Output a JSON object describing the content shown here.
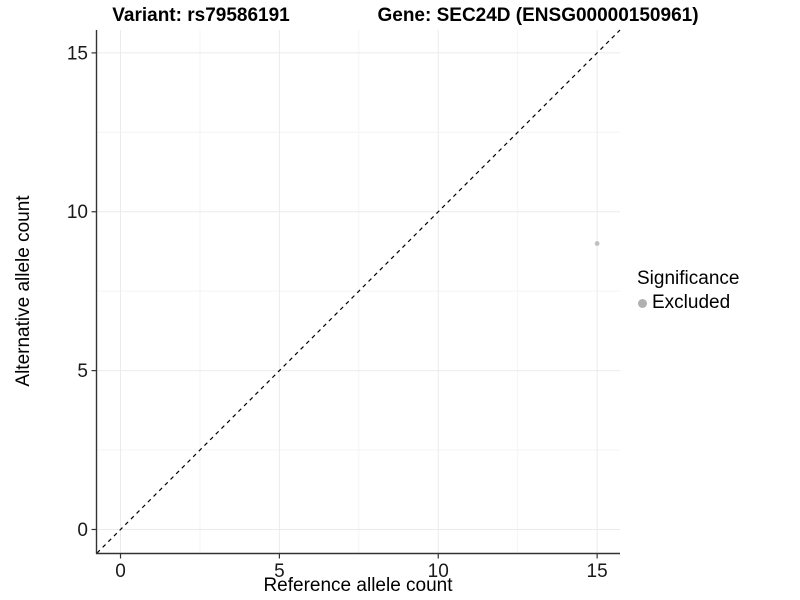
{
  "chart_data": {
    "type": "scatter",
    "title_left": "Variant: rs79586191",
    "title_right": "Gene: SEC24D (ENSG00000150961)",
    "xlabel": "Reference allele count",
    "ylabel": "Alternative allele count",
    "xlim": [
      -0.74,
      15.72
    ],
    "ylim": [
      -0.74,
      15.72
    ],
    "x_ticks": [
      0,
      5,
      10,
      15
    ],
    "y_ticks": [
      0,
      5,
      10,
      15
    ],
    "x_minor_ticks": [
      2.5,
      7.5,
      12.5
    ],
    "y_minor_ticks": [
      2.5,
      7.5,
      12.5
    ],
    "grid": true,
    "identity_line": {
      "slope": 1,
      "intercept": 0,
      "style": "dashed",
      "color": "#000000"
    },
    "series": [
      {
        "name": "Excluded",
        "color": "#c0c0c0",
        "marker_radius": 2.4,
        "points": [
          {
            "x": 15,
            "y": 9
          }
        ]
      }
    ],
    "legend": {
      "title": "Significance",
      "position": "right",
      "items": [
        {
          "label": "Excluded",
          "color": "#b0b0b0"
        }
      ]
    },
    "colors": {
      "background": "#ffffff",
      "grid_major": "#ebebeb",
      "grid_minor": "#f4f4f4",
      "axis_line": "#333333",
      "tick_mark": "#333333",
      "tick_text": "#1a1a1a"
    }
  }
}
